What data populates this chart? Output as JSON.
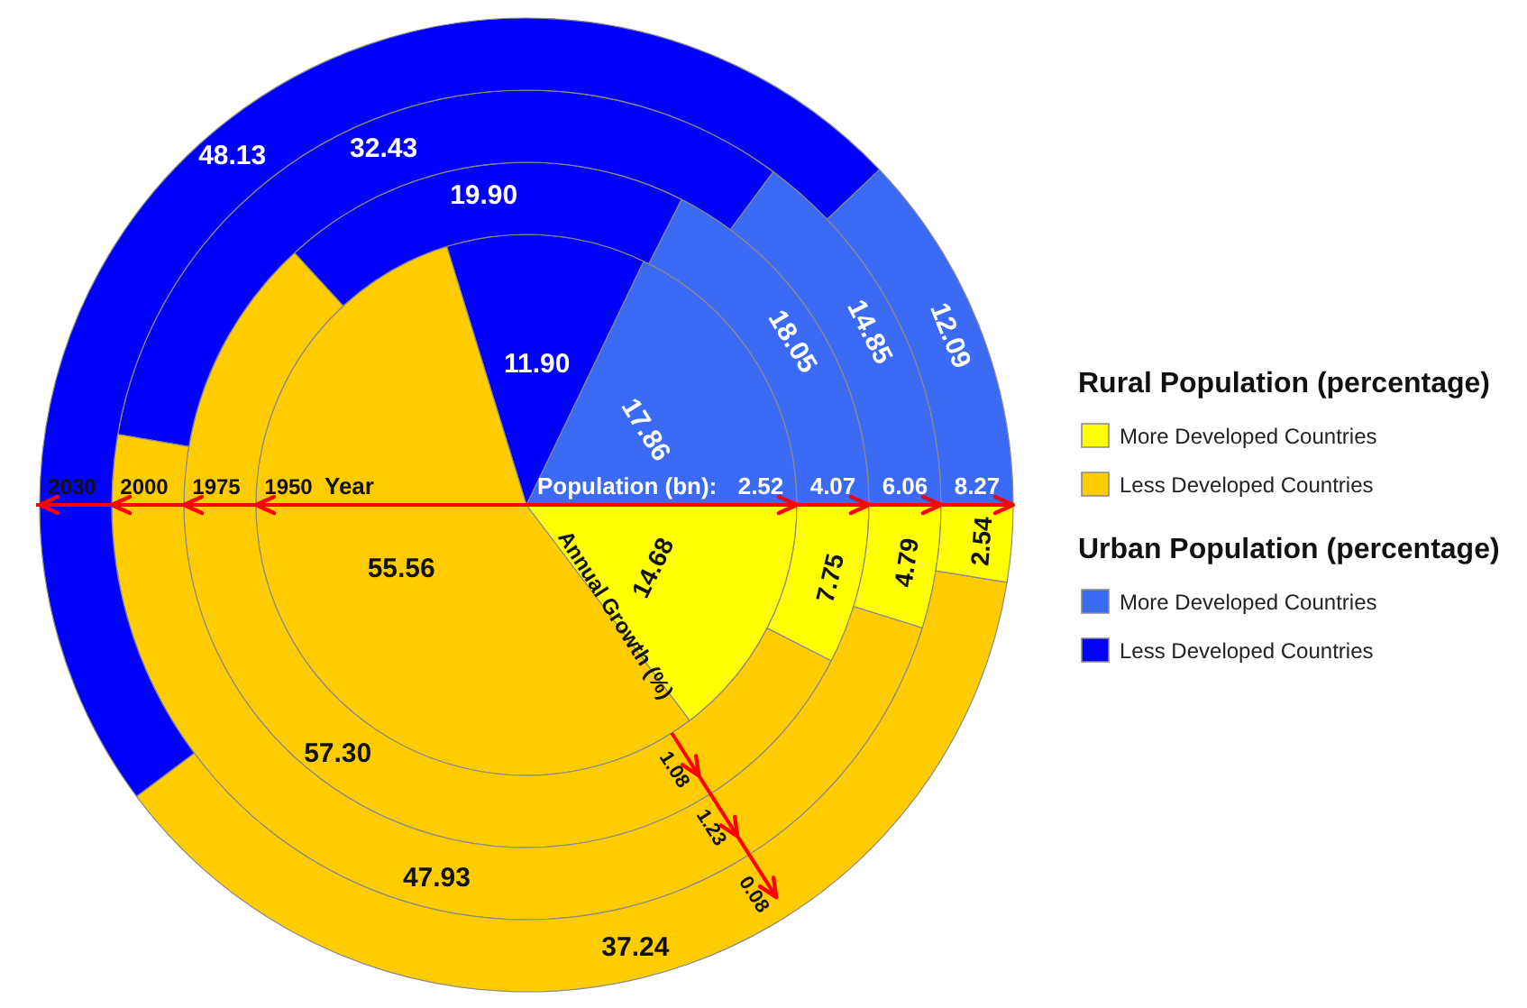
{
  "chart_data": {
    "type": "pie",
    "categories": [
      "More Developed Countries",
      "Less Developed Countries",
      "Less Developed Countries",
      "More Developed Countries"
    ],
    "colors": [
      "#3b6af5",
      "#0000fb",
      "#ffcc00",
      "#ffff00"
    ],
    "series": [
      {
        "name": "1950",
        "values": [
          17.86,
          11.9,
          55.56,
          14.68
        ],
        "value_labels": [
          "17.86",
          "11.90",
          "55.56",
          "14.68"
        ]
      },
      {
        "name": "1975",
        "values": [
          18.05,
          19.9,
          57.3,
          7.75
        ],
        "value_labels": [
          "18.05",
          "19.90",
          "57.30",
          "7.75"
        ]
      },
      {
        "name": "2000",
        "values": [
          14.85,
          32.43,
          47.93,
          4.79
        ],
        "value_labels": [
          "14.85",
          "32.43",
          "47.93",
          "4.79"
        ]
      },
      {
        "name": "2030",
        "values": [
          12.09,
          48.13,
          37.24,
          2.54
        ],
        "value_labels": [
          "12.09",
          "48.13",
          "37.24",
          "2.54"
        ]
      }
    ],
    "annotations": [
      "Year",
      "Population (bn):",
      "2.52",
      "4.07",
      "6.06",
      "8.27",
      "Annual Growth (%)",
      "1.08",
      "1.23",
      "0.08",
      "Rural Population (percentage)",
      "Urban Population (percentage)"
    ],
    "legend": "right"
  }
}
